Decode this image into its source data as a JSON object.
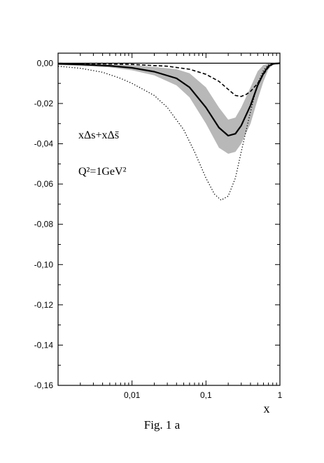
{
  "caption": "Fig. 1 a",
  "chart_data": {
    "type": "line",
    "title": "",
    "xlabel": "x",
    "ylabel": "",
    "x_scale": "log",
    "xlim": [
      0.001,
      1
    ],
    "ylim": [
      -0.16,
      0.005
    ],
    "x_tick_labels": [
      {
        "value": 0.01,
        "label": "0,01"
      },
      {
        "value": 0.1,
        "label": "0,1"
      },
      {
        "value": 1,
        "label": "1"
      }
    ],
    "y_tick_labels": [
      {
        "value": 0.0,
        "label": "0,00"
      },
      {
        "value": -0.02,
        "label": "-0,02"
      },
      {
        "value": -0.04,
        "label": "-0,04"
      },
      {
        "value": -0.06,
        "label": "-0,06"
      },
      {
        "value": -0.08,
        "label": "-0,08"
      },
      {
        "value": -0.1,
        "label": "-0,10"
      },
      {
        "value": -0.12,
        "label": "-0,12"
      },
      {
        "value": -0.14,
        "label": "-0,14"
      },
      {
        "value": -0.16,
        "label": "-0,16"
      }
    ],
    "annotations": {
      "quantity": "xΔs+xΔs̄",
      "scale": "Q²=1GeV²"
    },
    "grid": false,
    "series": [
      {
        "style": "solid",
        "x": [
          0.001,
          0.002,
          0.005,
          0.01,
          0.02,
          0.04,
          0.06,
          0.1,
          0.15,
          0.2,
          0.25,
          0.3,
          0.4,
          0.5,
          0.6,
          0.7,
          0.8,
          1.0
        ],
        "y": [
          -0.0003,
          -0.0006,
          -0.0013,
          -0.0023,
          -0.0042,
          -0.0075,
          -0.012,
          -0.022,
          -0.032,
          -0.036,
          -0.035,
          -0.031,
          -0.021,
          -0.011,
          -0.005,
          -0.0015,
          -0.0003,
          0.0
        ]
      },
      {
        "style": "dashed",
        "x": [
          0.001,
          0.003,
          0.01,
          0.03,
          0.06,
          0.1,
          0.15,
          0.2,
          0.25,
          0.3,
          0.35,
          0.4,
          0.5,
          0.6,
          0.7,
          0.8,
          1.0
        ],
        "y": [
          -0.0001,
          -0.0002,
          -0.0006,
          -0.0015,
          -0.003,
          -0.0055,
          -0.009,
          -0.013,
          -0.016,
          -0.0165,
          -0.0155,
          -0.014,
          -0.01,
          -0.0055,
          -0.002,
          -0.0005,
          0.0
        ]
      },
      {
        "style": "dotted",
        "x": [
          0.001,
          0.002,
          0.004,
          0.007,
          0.01,
          0.02,
          0.03,
          0.05,
          0.07,
          0.1,
          0.13,
          0.16,
          0.2,
          0.25,
          0.3,
          0.4,
          0.5,
          0.6,
          0.7,
          0.8,
          1.0
        ],
        "y": [
          -0.0015,
          -0.0025,
          -0.0045,
          -0.0075,
          -0.01,
          -0.016,
          -0.022,
          -0.033,
          -0.044,
          -0.057,
          -0.065,
          -0.068,
          -0.066,
          -0.057,
          -0.044,
          -0.024,
          -0.01,
          -0.0035,
          -0.0008,
          -0.0002,
          0.0
        ]
      }
    ],
    "error_band": {
      "x": [
        0.001,
        0.005,
        0.01,
        0.02,
        0.04,
        0.06,
        0.1,
        0.15,
        0.2,
        0.25,
        0.3,
        0.4,
        0.5,
        0.6,
        0.7,
        0.8,
        1.0
      ],
      "upper": [
        0.0,
        -0.0005,
        -0.001,
        -0.0018,
        -0.003,
        -0.005,
        -0.012,
        -0.022,
        -0.028,
        -0.027,
        -0.022,
        -0.012,
        -0.004,
        -0.0008,
        -0.0002,
        0.0,
        0.0
      ],
      "lower": [
        -0.0008,
        -0.002,
        -0.0035,
        -0.006,
        -0.011,
        -0.017,
        -0.03,
        -0.042,
        -0.045,
        -0.044,
        -0.04,
        -0.03,
        -0.018,
        -0.009,
        -0.003,
        -0.0008,
        0.0
      ]
    }
  }
}
